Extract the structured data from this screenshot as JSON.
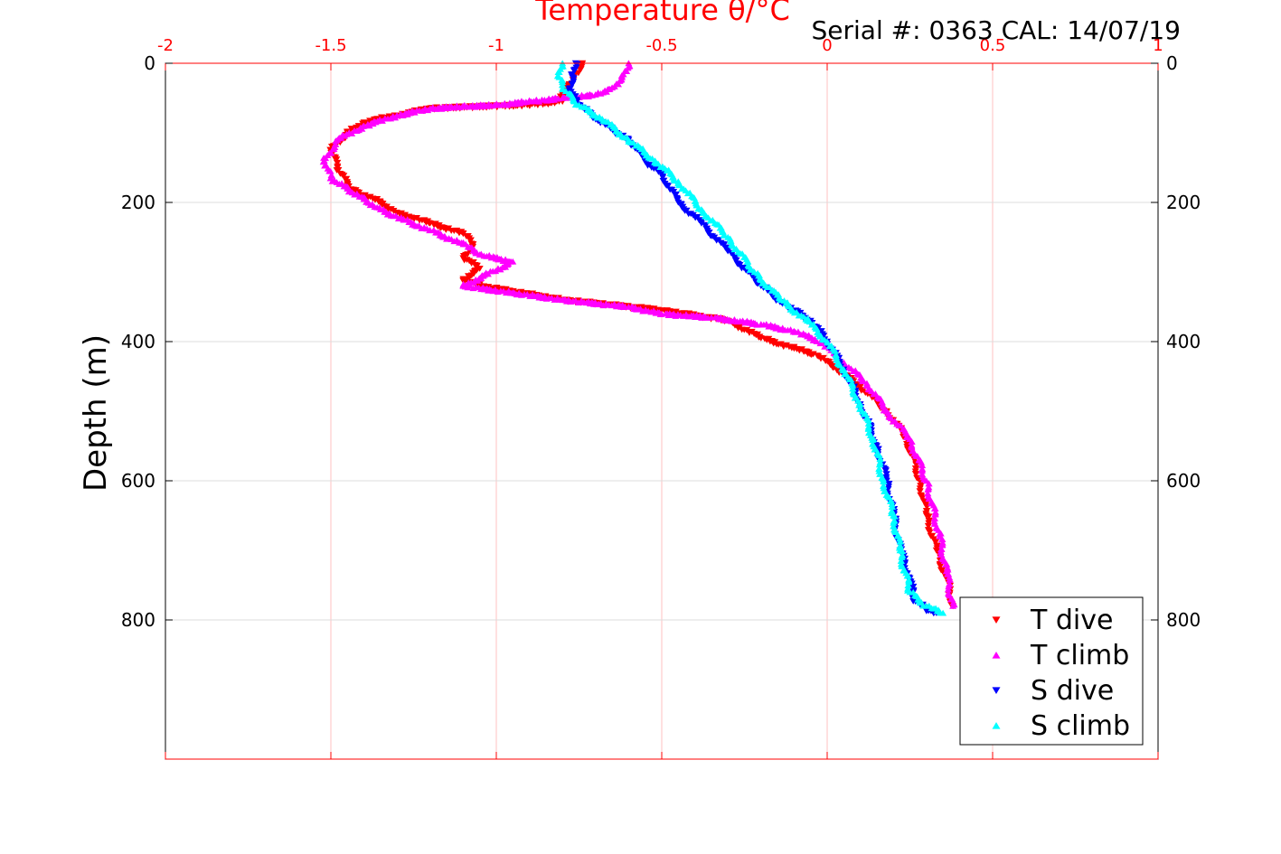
{
  "chart_data": {
    "type": "scatter",
    "title": "Temperature θ/°C",
    "annotation": "Serial #: 0363  CAL: 14/07/19",
    "xlabel": "Temperature θ/°C",
    "ylabel": "Depth (m)",
    "xlim": [
      -2,
      1
    ],
    "ylim": [
      0,
      1000
    ],
    "y_reversed": true,
    "x_axis_position": "top",
    "x_ticks": [
      "-2",
      "-1.5",
      "-1",
      "-0.5",
      "0",
      "0.5",
      "1"
    ],
    "x_tick_values": [
      -2,
      -1.5,
      -1,
      -0.5,
      0,
      0.5,
      1
    ],
    "y_ticks": [
      "0",
      "200",
      "400",
      "600",
      "800"
    ],
    "y_tick_values": [
      0,
      200,
      400,
      600,
      800
    ],
    "grid": true,
    "legend_position": "bottom-right",
    "colors": {
      "x_axis": "#ff0000",
      "grid_x": "#ffc0c0",
      "grid_y": "#dddddd",
      "text": "#000000"
    },
    "series": [
      {
        "name": "T dive",
        "color": "#ff0000",
        "marker": "triangle-down",
        "x": [
          -0.74,
          -0.76,
          -0.78,
          -0.8,
          -0.8,
          -0.9,
          -1.2,
          -1.3,
          -1.4,
          -1.45,
          -1.5,
          -1.48,
          -1.45,
          -1.42,
          -1.35,
          -1.3,
          -1.2,
          -1.1,
          -1.07,
          -1.1,
          -1.05,
          -1.1,
          -1.05,
          -0.8,
          -0.5,
          -0.3,
          -0.2,
          -0.1,
          -0.03,
          0.03,
          0.1,
          0.18,
          0.24,
          0.28,
          0.3,
          0.33,
          0.36,
          0.38
        ],
        "y": [
          0,
          15,
          30,
          45,
          55,
          60,
          65,
          75,
          85,
          100,
          125,
          150,
          175,
          185,
          200,
          215,
          230,
          245,
          260,
          280,
          295,
          310,
          320,
          340,
          355,
          370,
          395,
          410,
          420,
          440,
          465,
          500,
          540,
          600,
          650,
          700,
          740,
          780
        ]
      },
      {
        "name": "T climb",
        "color": "#ff00ff",
        "marker": "triangle-up",
        "x": [
          -0.6,
          -0.62,
          -0.65,
          -0.7,
          -0.8,
          -0.9,
          -1.0,
          -1.1,
          -1.2,
          -1.3,
          -1.4,
          -1.48,
          -1.52,
          -1.5,
          -1.45,
          -1.4,
          -1.35,
          -1.28,
          -1.2,
          -1.1,
          -1.05,
          -0.95,
          -1.1,
          -0.95,
          -0.8,
          -0.6,
          -0.5,
          -0.35,
          -0.2,
          -0.1,
          -0.02,
          0.05,
          0.12,
          0.18,
          0.25,
          0.3,
          0.34,
          0.36,
          0.38
        ],
        "y": [
          0,
          20,
          35,
          45,
          50,
          55,
          60,
          62,
          65,
          75,
          90,
          110,
          140,
          165,
          180,
          195,
          210,
          225,
          240,
          260,
          275,
          285,
          320,
          330,
          340,
          350,
          360,
          365,
          375,
          385,
          400,
          430,
          460,
          500,
          540,
          600,
          680,
          730,
          780
        ]
      },
      {
        "name": "S dive",
        "color": "#0000ff",
        "marker": "triangle-down",
        "x": [
          -0.76,
          -0.77,
          -0.78,
          -0.75,
          -0.7,
          -0.6,
          -0.55,
          -0.5,
          -0.45,
          -0.38,
          -0.3,
          -0.2,
          -0.12,
          -0.05,
          0.0,
          0.05,
          0.1,
          0.15,
          0.18,
          0.2,
          0.22,
          0.25,
          0.26,
          0.3,
          0.33
        ],
        "y": [
          0,
          20,
          40,
          60,
          80,
          110,
          140,
          160,
          200,
          230,
          270,
          320,
          350,
          370,
          400,
          440,
          490,
          550,
          600,
          650,
          700,
          740,
          770,
          785,
          790
        ]
      },
      {
        "name": "S climb",
        "color": "#00ffff",
        "marker": "triangle-up",
        "x": [
          -0.8,
          -0.81,
          -0.79,
          -0.75,
          -0.68,
          -0.6,
          -0.52,
          -0.45,
          -0.38,
          -0.3,
          -0.22,
          -0.14,
          -0.06,
          0.0,
          0.05,
          0.1,
          0.14,
          0.17,
          0.2,
          0.22,
          0.25,
          0.3,
          0.35
        ],
        "y": [
          0,
          20,
          40,
          60,
          80,
          110,
          140,
          170,
          210,
          250,
          300,
          340,
          370,
          400,
          440,
          490,
          540,
          600,
          650,
          700,
          760,
          780,
          790
        ]
      }
    ]
  }
}
